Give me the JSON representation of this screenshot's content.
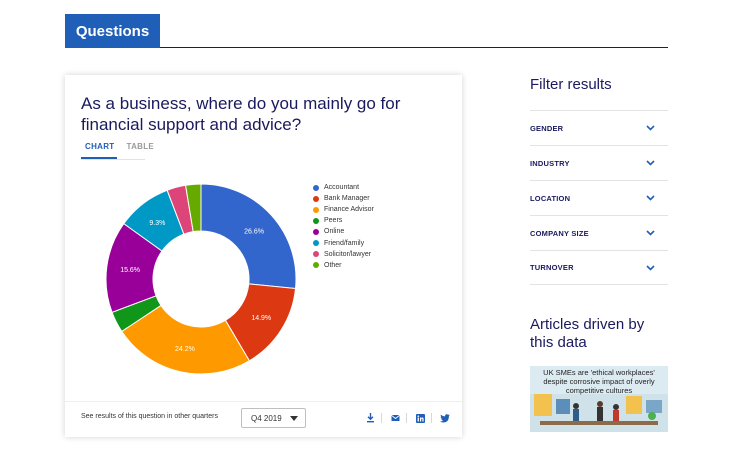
{
  "header": {
    "tab_label": "Questions"
  },
  "question": {
    "title": "As a business, where do you mainly go for financial support and advice?",
    "tabs": [
      {
        "label": "CHART",
        "active": true
      },
      {
        "label": "TABLE",
        "active": false
      }
    ]
  },
  "chart_data": {
    "type": "pie",
    "donut": true,
    "title": "",
    "categories": [
      "Accountant",
      "Bank Manager",
      "Finance Advisor",
      "Peers",
      "Online",
      "Friend/family",
      "Solicitor/lawyer",
      "Other"
    ],
    "values": [
      26.6,
      14.9,
      24.2,
      3.6,
      15.6,
      9.3,
      3.2,
      2.6
    ],
    "labels": [
      "26.6%",
      "14.9%",
      "24.2%",
      "",
      "15.6%",
      "9.3%",
      "",
      ""
    ],
    "colors": [
      "#3366cc",
      "#dc3912",
      "#ff9900",
      "#109618",
      "#990099",
      "#0099c6",
      "#dd4477",
      "#66aa00"
    ],
    "legend_position": "right"
  },
  "footer": {
    "other_quarters_text": "See results of this question in other quarters",
    "quarter_selected": "Q4 2019",
    "share_icons": [
      "download-icon",
      "email-icon",
      "linkedin-icon",
      "twitter-icon"
    ]
  },
  "sidebar": {
    "filter_title": "Filter results",
    "filters": [
      {
        "label": "GENDER"
      },
      {
        "label": "INDUSTRY"
      },
      {
        "label": "LOCATION"
      },
      {
        "label": "COMPANY SIZE"
      },
      {
        "label": "TURNOVER"
      }
    ],
    "articles_title": "Articles driven by this data",
    "article_caption": "UK SMEs are 'ethical workplaces' despite corrosive impact of overly competitive cultures"
  },
  "colors": {
    "brand_blue": "#1f5fb8",
    "navy": "#1a1a5e"
  }
}
